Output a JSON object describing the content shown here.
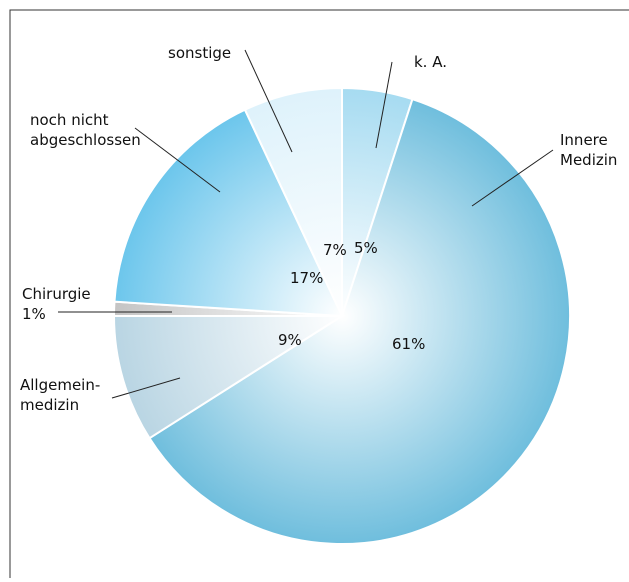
{
  "chart_data": {
    "type": "pie",
    "categories": [
      "k. A.",
      "Innere\nMedizin",
      "Allgemein-\nmedizin",
      "Chirurgie",
      "noch nicht\nabgeschlossen",
      "sonstige"
    ],
    "values": [
      5,
      61,
      9,
      1,
      17,
      7
    ],
    "value_labels": [
      "5%",
      "61%",
      "9%",
      "1%",
      "17%",
      "7%"
    ],
    "colors": [
      "#a6dbf1",
      "#6fbedd",
      "#b9d5e3",
      "#c4c4c4",
      "#6cc6ec",
      "#def2fb"
    ]
  }
}
